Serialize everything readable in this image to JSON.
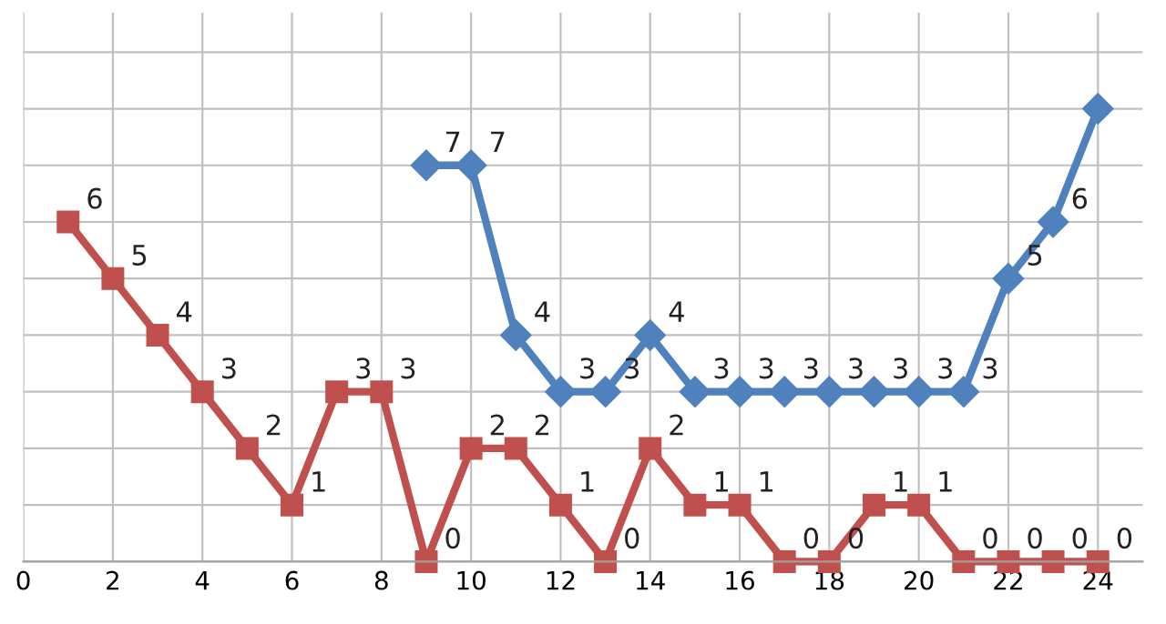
{
  "chart_data": {
    "type": "line",
    "xlim": [
      0,
      25
    ],
    "xticks": [
      0,
      2,
      4,
      6,
      8,
      10,
      12,
      14,
      16,
      18,
      20,
      22,
      24
    ],
    "ylim": [
      0,
      9.7
    ],
    "yticks": [
      {
        "value": 0,
        "label": null
      },
      {
        "value": 1,
        "label": null
      },
      {
        "value": 2,
        "label": null
      },
      {
        "value": 3,
        "label": null
      },
      {
        "value": 4,
        "label": null
      },
      {
        "value": 5,
        "label": null
      },
      {
        "value": 6,
        "label": null
      },
      {
        "value": 7,
        "label": null
      },
      {
        "value": 8,
        "label": null
      },
      {
        "value": 9,
        "label": null
      }
    ],
    "tick_labels": "x",
    "grid": true,
    "line_style": "solid",
    "series": [
      {
        "color": "#4f81bd",
        "marker": "diamond",
        "x": [
          9,
          10,
          11,
          12,
          13,
          14,
          15,
          16,
          17,
          18,
          19,
          20,
          21,
          22,
          23,
          24
        ],
        "values": [
          7,
          7,
          4,
          3,
          3,
          4,
          3,
          3,
          3,
          3,
          3,
          3,
          3,
          5,
          6,
          8
        ],
        "value_labels": [
          "7",
          "7",
          "4",
          "3",
          "3",
          "4",
          "3",
          "3",
          "3",
          "3",
          "3",
          "3",
          "3",
          "5",
          "6",
          null
        ]
      },
      {
        "color": "#c0504d",
        "marker": "square",
        "x": [
          1,
          2,
          3,
          4,
          5,
          6,
          7,
          8,
          9,
          10,
          11,
          12,
          13,
          14,
          15,
          16,
          17,
          18,
          19,
          20,
          21,
          22,
          23,
          24
        ],
        "values": [
          6,
          5,
          4,
          3,
          2,
          1,
          3,
          3,
          0,
          2,
          2,
          1,
          0,
          2,
          1,
          1,
          0,
          0,
          1,
          1,
          0,
          0,
          0,
          0
        ],
        "value_labels": [
          "6",
          "5",
          "4",
          "3",
          "2",
          "1",
          "3",
          "3",
          "0",
          "2",
          "2",
          "1",
          "0",
          "2",
          "1",
          "1",
          "0",
          "0",
          "1",
          "1",
          "0",
          "0",
          "0",
          "0"
        ]
      }
    ]
  }
}
